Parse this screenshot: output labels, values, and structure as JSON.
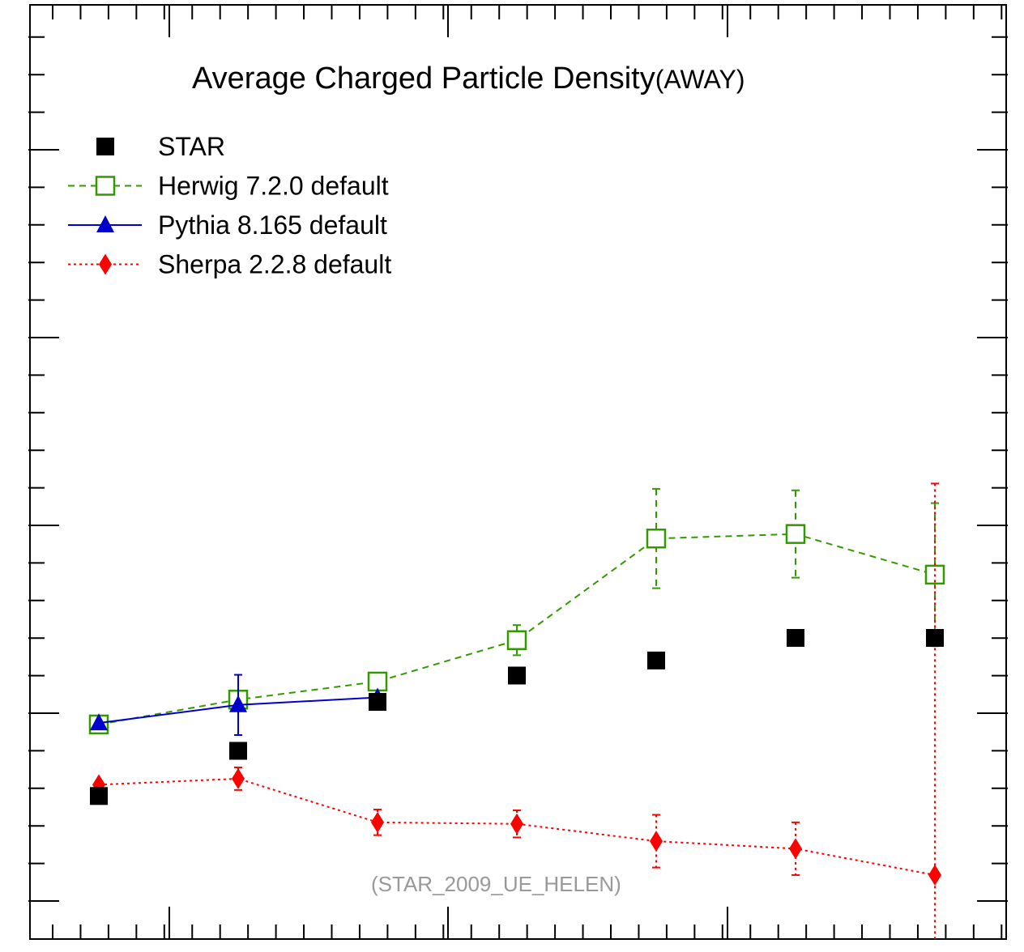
{
  "chart_data": {
    "type": "scatter",
    "title": "Average Charged Particle Density",
    "title_suffix": "(AWAY)",
    "annotation": "(STAR_2009_UE_HELEN)",
    "xlabel": "",
    "ylabel": "",
    "x": [
      1,
      2,
      3,
      4,
      5,
      6,
      7
    ],
    "xlim": [
      0.5,
      7.5
    ],
    "ylim": [
      0,
      1
    ],
    "grid": false,
    "legend_position": "top-left",
    "series": [
      {
        "name": "STAR",
        "color": "#000000",
        "marker": "filled-square",
        "line": "none",
        "values": [
          0.19,
          0.25,
          0.315,
          0.35,
          0.37,
          0.4,
          0.4
        ],
        "errors": [
          0,
          0,
          0,
          0,
          0,
          0,
          0
        ]
      },
      {
        "name": "Herwig 7.2.0 default",
        "color": "#339900",
        "marker": "open-square",
        "line": "dashed",
        "values": [
          0.285,
          0.318,
          0.342,
          0.397,
          0.532,
          0.538,
          0.484
        ],
        "errors": [
          0,
          0,
          0,
          0.02,
          0.066,
          0.058,
          0.095
        ]
      },
      {
        "name": "Pythia 8.165 default",
        "color": "#0000cc",
        "marker": "filled-triangle",
        "line": "solid",
        "values": [
          0.287,
          0.311,
          0.321
        ],
        "errors": [
          0,
          0.04,
          0
        ]
      },
      {
        "name": "Sherpa 2.2.8 default",
        "color": "#ff0000",
        "marker": "filled-diamond",
        "line": "dotted",
        "values": [
          0.205,
          0.213,
          0.155,
          0.153,
          0.13,
          0.12,
          0.085
        ],
        "errors": [
          0,
          0.015,
          0.017,
          0.018,
          0.035,
          0.035,
          0.52
        ]
      }
    ]
  }
}
